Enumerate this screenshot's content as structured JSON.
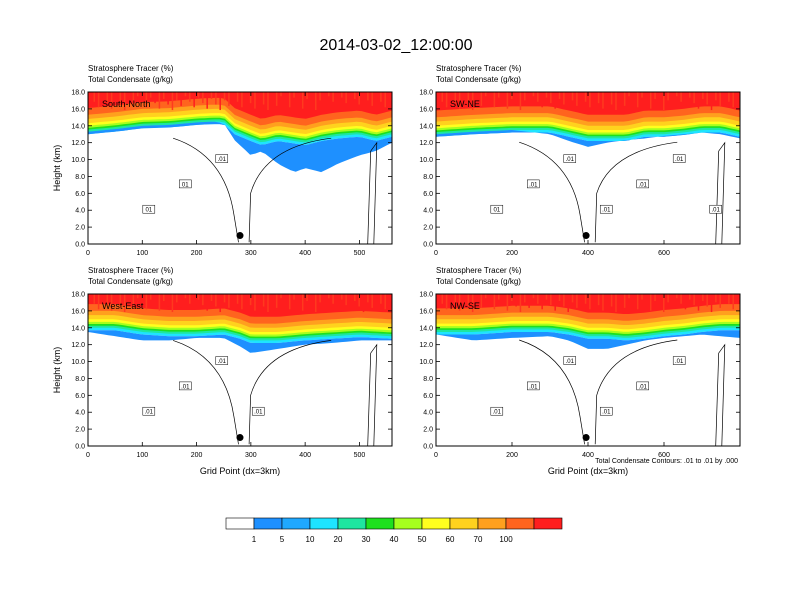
{
  "title": "2014-03-02_12:00:00",
  "colorbar": {
    "labels": [
      "1",
      "5",
      "10",
      "20",
      "30",
      "40",
      "50",
      "60",
      "70",
      "100"
    ],
    "colors": [
      "#ffffff",
      "#1e90ff",
      "#1fa8ff",
      "#1ee4ff",
      "#1ee6a0",
      "#1ee01e",
      "#a6ff1e",
      "#ffff1e",
      "#ffd21e",
      "#ffa01e",
      "#ff641e",
      "#ff1e1e"
    ]
  },
  "x_axis_label": "Grid Point (dx=3km)",
  "contour_note": "Total Condensate Contours: .01 to .01 by .000",
  "chart_data": [
    {
      "type": "heatmap",
      "panel_label": "South-North",
      "title_line1": "Stratosphere Tracer   (%)",
      "title_line2": "Total Condensate   (g/kg)",
      "ylabel": "Height (km)",
      "xlabel": "",
      "xlim": [
        0,
        560
      ],
      "ylim": [
        0,
        18
      ],
      "x_ticks": [
        "0",
        "100",
        "200",
        "300",
        "400",
        "500"
      ],
      "x_tick_values": [
        0,
        100,
        200,
        300,
        400,
        500
      ],
      "y_ticks": [
        "0.0",
        "2.0",
        "4.0",
        "6.0",
        "8.0",
        "10.0",
        "12.0",
        "14.0",
        "16.0",
        "18.0"
      ],
      "y_tick_values": [
        0,
        2,
        4,
        6,
        8,
        10,
        12,
        14,
        16,
        18
      ],
      "marker": {
        "x": 280,
        "y": 1.0
      },
      "tracer_profile": {
        "x": [
          0,
          50,
          100,
          150,
          200,
          230,
          250,
          270,
          300,
          320,
          350,
          380,
          400,
          430,
          460,
          500,
          530,
          560
        ],
        "base_km": [
          13.3,
          13.6,
          14.0,
          14.1,
          14.4,
          14.5,
          14.5,
          13.3,
          12.5,
          12.0,
          12.5,
          12.2,
          12.0,
          12.5,
          12.8,
          13.0,
          12.5,
          13.0
        ],
        "blue_km": [
          13.3,
          13.6,
          14.0,
          14.1,
          14.4,
          14.5,
          14.3,
          12.3,
          10.5,
          11.0,
          9.5,
          8.5,
          9.0,
          8.5,
          9.5,
          10.5,
          11.0,
          12.0
        ]
      },
      "contour_labels": [
        "01",
        "01",
        ".01"
      ]
    },
    {
      "type": "heatmap",
      "panel_label": "SW-NE",
      "title_line1": "Stratosphere Tracer   (%)",
      "title_line2": "Total Condensate   (g/kg)",
      "ylabel": "",
      "xlabel": "",
      "xlim": [
        0,
        800
      ],
      "ylim": [
        0,
        18
      ],
      "x_ticks": [
        "0",
        "200",
        "400",
        "600"
      ],
      "x_tick_values": [
        0,
        200,
        400,
        600
      ],
      "y_ticks": [
        "0.0",
        "2.0",
        "4.0",
        "6.0",
        "8.0",
        "10.0",
        "12.0",
        "14.0",
        "16.0",
        "18.0"
      ],
      "y_tick_values": [
        0,
        2,
        4,
        6,
        8,
        10,
        12,
        14,
        16,
        18
      ],
      "marker": {
        "x": 395,
        "y": 1.0
      },
      "tracer_profile": {
        "x": [
          0,
          100,
          200,
          300,
          350,
          400,
          450,
          500,
          550,
          600,
          650,
          700,
          750,
          800
        ],
        "base_km": [
          13.0,
          13.3,
          13.5,
          13.5,
          13.0,
          12.5,
          12.5,
          12.5,
          13.0,
          13.0,
          13.2,
          13.5,
          13.5,
          13.0
        ],
        "blue_km": [
          13.0,
          13.3,
          13.5,
          13.0,
          12.2,
          11.5,
          12.0,
          12.3,
          12.5,
          12.8,
          13.0,
          13.2,
          13.0,
          12.5
        ]
      },
      "contour_labels": [
        "01",
        ".01",
        ".01",
        ".01",
        ".01",
        ".01",
        ".01"
      ]
    },
    {
      "type": "heatmap",
      "panel_label": "West-East",
      "title_line1": "Stratosphere Tracer   (%)",
      "title_line2": "Total Condensate   (g/kg)",
      "ylabel": "Height (km)",
      "xlabel": "Grid Point (dx=3km)",
      "xlim": [
        0,
        560
      ],
      "ylim": [
        0,
        18
      ],
      "x_ticks": [
        "0",
        "100",
        "200",
        "300",
        "400",
        "500"
      ],
      "x_tick_values": [
        0,
        100,
        200,
        300,
        400,
        500
      ],
      "y_ticks": [
        "0.0",
        "2.0",
        "4.0",
        "6.0",
        "8.0",
        "10.0",
        "12.0",
        "14.0",
        "16.0",
        "18.0"
      ],
      "y_tick_values": [
        0,
        2,
        4,
        6,
        8,
        10,
        12,
        14,
        16,
        18
      ],
      "marker": {
        "x": 280,
        "y": 1.0
      },
      "tracer_profile": {
        "x": [
          0,
          50,
          100,
          150,
          200,
          250,
          280,
          300,
          350,
          400,
          450,
          500,
          560
        ],
        "base_km": [
          14.0,
          14.0,
          13.5,
          13.3,
          13.3,
          13.5,
          13.0,
          12.5,
          12.5,
          12.8,
          13.0,
          13.2,
          13.0
        ],
        "blue_km": [
          13.5,
          13.0,
          12.5,
          12.5,
          12.8,
          12.8,
          11.8,
          11.0,
          11.5,
          12.0,
          12.2,
          12.5,
          12.5
        ]
      },
      "contour_labels": [
        ".01",
        ".01",
        ".01",
        ".01"
      ]
    },
    {
      "type": "heatmap",
      "panel_label": "NW-SE",
      "title_line1": "Stratosphere Tracer   (%)",
      "title_line2": "Total Condensate   (g/kg)",
      "ylabel": "",
      "xlabel": "Grid Point (dx=3km)",
      "xlim": [
        0,
        800
      ],
      "ylim": [
        0,
        18
      ],
      "x_ticks": [
        "0",
        "200",
        "400",
        "600"
      ],
      "x_tick_values": [
        0,
        200,
        400,
        600
      ],
      "y_ticks": [
        "0.0",
        "2.0",
        "4.0",
        "6.0",
        "8.0",
        "10.0",
        "12.0",
        "14.0",
        "16.0",
        "18.0"
      ],
      "y_tick_values": [
        0,
        2,
        4,
        6,
        8,
        10,
        12,
        14,
        16,
        18
      ],
      "marker": {
        "x": 395,
        "y": 1.0
      },
      "tracer_profile": {
        "x": [
          0,
          100,
          200,
          300,
          350,
          400,
          450,
          500,
          550,
          600,
          650,
          700,
          750,
          800
        ],
        "base_km": [
          13.5,
          13.5,
          13.8,
          13.8,
          13.5,
          13.0,
          13.0,
          12.8,
          13.0,
          13.3,
          13.5,
          13.8,
          14.0,
          14.0
        ],
        "blue_km": [
          13.2,
          12.5,
          12.8,
          13.0,
          12.5,
          11.5,
          11.5,
          12.0,
          12.5,
          12.8,
          13.0,
          13.2,
          13.0,
          12.8
        ]
      },
      "contour_labels": [
        ".01",
        ".01",
        ".01",
        ".01",
        ".01",
        ".01"
      ]
    }
  ]
}
